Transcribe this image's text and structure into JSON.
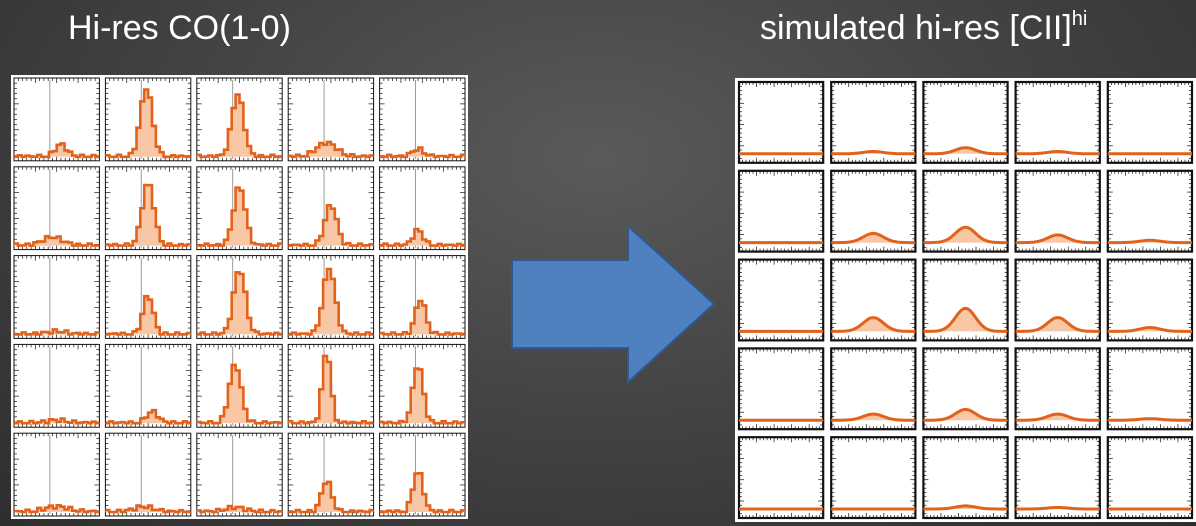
{
  "left_panel": {
    "title": "Hi-res CO(1-0)",
    "rows": 5,
    "cols": 5,
    "spectra": [
      [
        {
          "center": 0.55,
          "width": 0.07,
          "peak": 0.16
        },
        {
          "center": 0.48,
          "width": 0.07,
          "peak": 0.88
        },
        {
          "center": 0.48,
          "width": 0.07,
          "peak": 0.8
        },
        {
          "center": 0.45,
          "width": 0.12,
          "peak": 0.18
        },
        {
          "center": 0.45,
          "width": 0.07,
          "peak": 0.1
        }
      ],
      [
        {
          "center": 0.45,
          "width": 0.12,
          "peak": 0.11
        },
        {
          "center": 0.5,
          "width": 0.07,
          "peak": 0.8
        },
        {
          "center": 0.5,
          "width": 0.07,
          "peak": 0.75
        },
        {
          "center": 0.5,
          "width": 0.07,
          "peak": 0.52
        },
        {
          "center": 0.45,
          "width": 0.06,
          "peak": 0.2
        }
      ],
      [
        {
          "center": 0.5,
          "width": 0.12,
          "peak": 0.04
        },
        {
          "center": 0.5,
          "width": 0.06,
          "peak": 0.5
        },
        {
          "center": 0.5,
          "width": 0.07,
          "peak": 0.83
        },
        {
          "center": 0.48,
          "width": 0.07,
          "peak": 0.85
        },
        {
          "center": 0.48,
          "width": 0.06,
          "peak": 0.45
        }
      ],
      [
        {
          "center": 0.5,
          "width": 0.12,
          "peak": 0.04
        },
        {
          "center": 0.55,
          "width": 0.07,
          "peak": 0.15
        },
        {
          "center": 0.45,
          "width": 0.07,
          "peak": 0.75
        },
        {
          "center": 0.45,
          "width": 0.05,
          "peak": 0.92
        },
        {
          "center": 0.45,
          "width": 0.06,
          "peak": 0.75
        }
      ],
      [
        {
          "center": 0.5,
          "width": 0.15,
          "peak": 0.07
        },
        {
          "center": 0.45,
          "width": 0.12,
          "peak": 0.07
        },
        {
          "center": 0.45,
          "width": 0.12,
          "peak": 0.06
        },
        {
          "center": 0.45,
          "width": 0.06,
          "peak": 0.4
        },
        {
          "center": 0.45,
          "width": 0.06,
          "peak": 0.52
        }
      ]
    ],
    "line_color": "#e2621b",
    "fill_color": "#f8c7a5"
  },
  "arrow": {
    "icon": "right-arrow-icon",
    "fill": "#4f80c0",
    "stroke": "#2f5a90"
  },
  "right_panel": {
    "title_main": "simulated hi-res [CII]",
    "title_superscript": "hi",
    "rows": 5,
    "cols": 5,
    "spectra": [
      [
        {
          "center": 0.5,
          "width": 0.12,
          "peak": 0.0
        },
        {
          "center": 0.5,
          "width": 0.12,
          "peak": 0.03
        },
        {
          "center": 0.5,
          "width": 0.12,
          "peak": 0.08
        },
        {
          "center": 0.5,
          "width": 0.12,
          "peak": 0.03
        },
        {
          "center": 0.5,
          "width": 0.12,
          "peak": 0.0
        }
      ],
      [
        {
          "center": 0.5,
          "width": 0.12,
          "peak": 0.0
        },
        {
          "center": 0.5,
          "width": 0.12,
          "peak": 0.12
        },
        {
          "center": 0.5,
          "width": 0.12,
          "peak": 0.2
        },
        {
          "center": 0.5,
          "width": 0.12,
          "peak": 0.1
        },
        {
          "center": 0.5,
          "width": 0.12,
          "peak": 0.03
        }
      ],
      [
        {
          "center": 0.5,
          "width": 0.12,
          "peak": 0.0
        },
        {
          "center": 0.5,
          "width": 0.12,
          "peak": 0.18
        },
        {
          "center": 0.5,
          "width": 0.12,
          "peak": 0.3
        },
        {
          "center": 0.5,
          "width": 0.12,
          "peak": 0.18
        },
        {
          "center": 0.5,
          "width": 0.12,
          "peak": 0.05
        }
      ],
      [
        {
          "center": 0.5,
          "width": 0.12,
          "peak": 0.0
        },
        {
          "center": 0.5,
          "width": 0.12,
          "peak": 0.08
        },
        {
          "center": 0.5,
          "width": 0.12,
          "peak": 0.14
        },
        {
          "center": 0.5,
          "width": 0.12,
          "peak": 0.08
        },
        {
          "center": 0.5,
          "width": 0.12,
          "peak": 0.02
        }
      ],
      [
        {
          "center": 0.5,
          "width": 0.12,
          "peak": 0.0
        },
        {
          "center": 0.5,
          "width": 0.12,
          "peak": 0.0
        },
        {
          "center": 0.5,
          "width": 0.12,
          "peak": 0.04
        },
        {
          "center": 0.5,
          "width": 0.12,
          "peak": 0.02
        },
        {
          "center": 0.5,
          "width": 0.12,
          "peak": 0.0
        }
      ]
    ],
    "line_color": "#e2621b",
    "fill_color": "#f8c7a5"
  }
}
